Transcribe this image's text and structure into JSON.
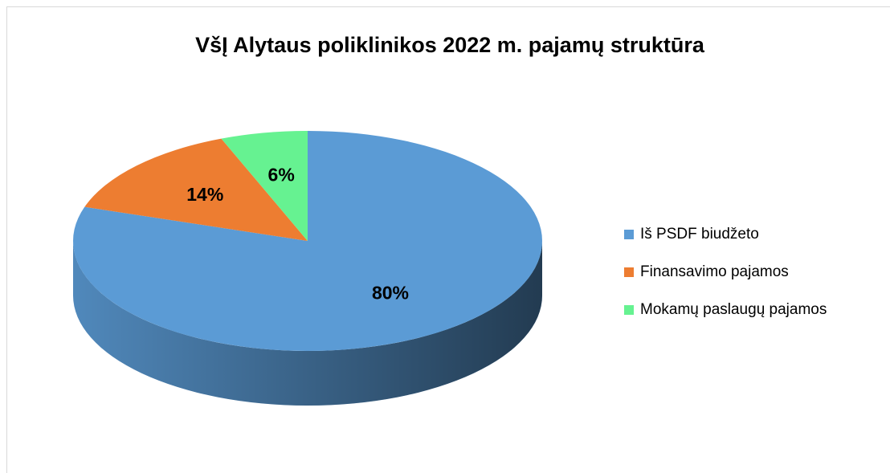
{
  "chart_data": {
    "type": "pie",
    "title": "VšĮ Alytaus poliklinikos 2022 m. pajamų struktūra",
    "categories": [
      "Iš PSDF biudžeto",
      "Finansavimo pajamos",
      "Mokamų paslaugų pajamos"
    ],
    "values": [
      80,
      14,
      6
    ],
    "value_labels": [
      "80%",
      "14%",
      "6%"
    ],
    "colors": [
      "#5b9bd5",
      "#ed7d31",
      "#66f291"
    ],
    "legend": "right"
  }
}
